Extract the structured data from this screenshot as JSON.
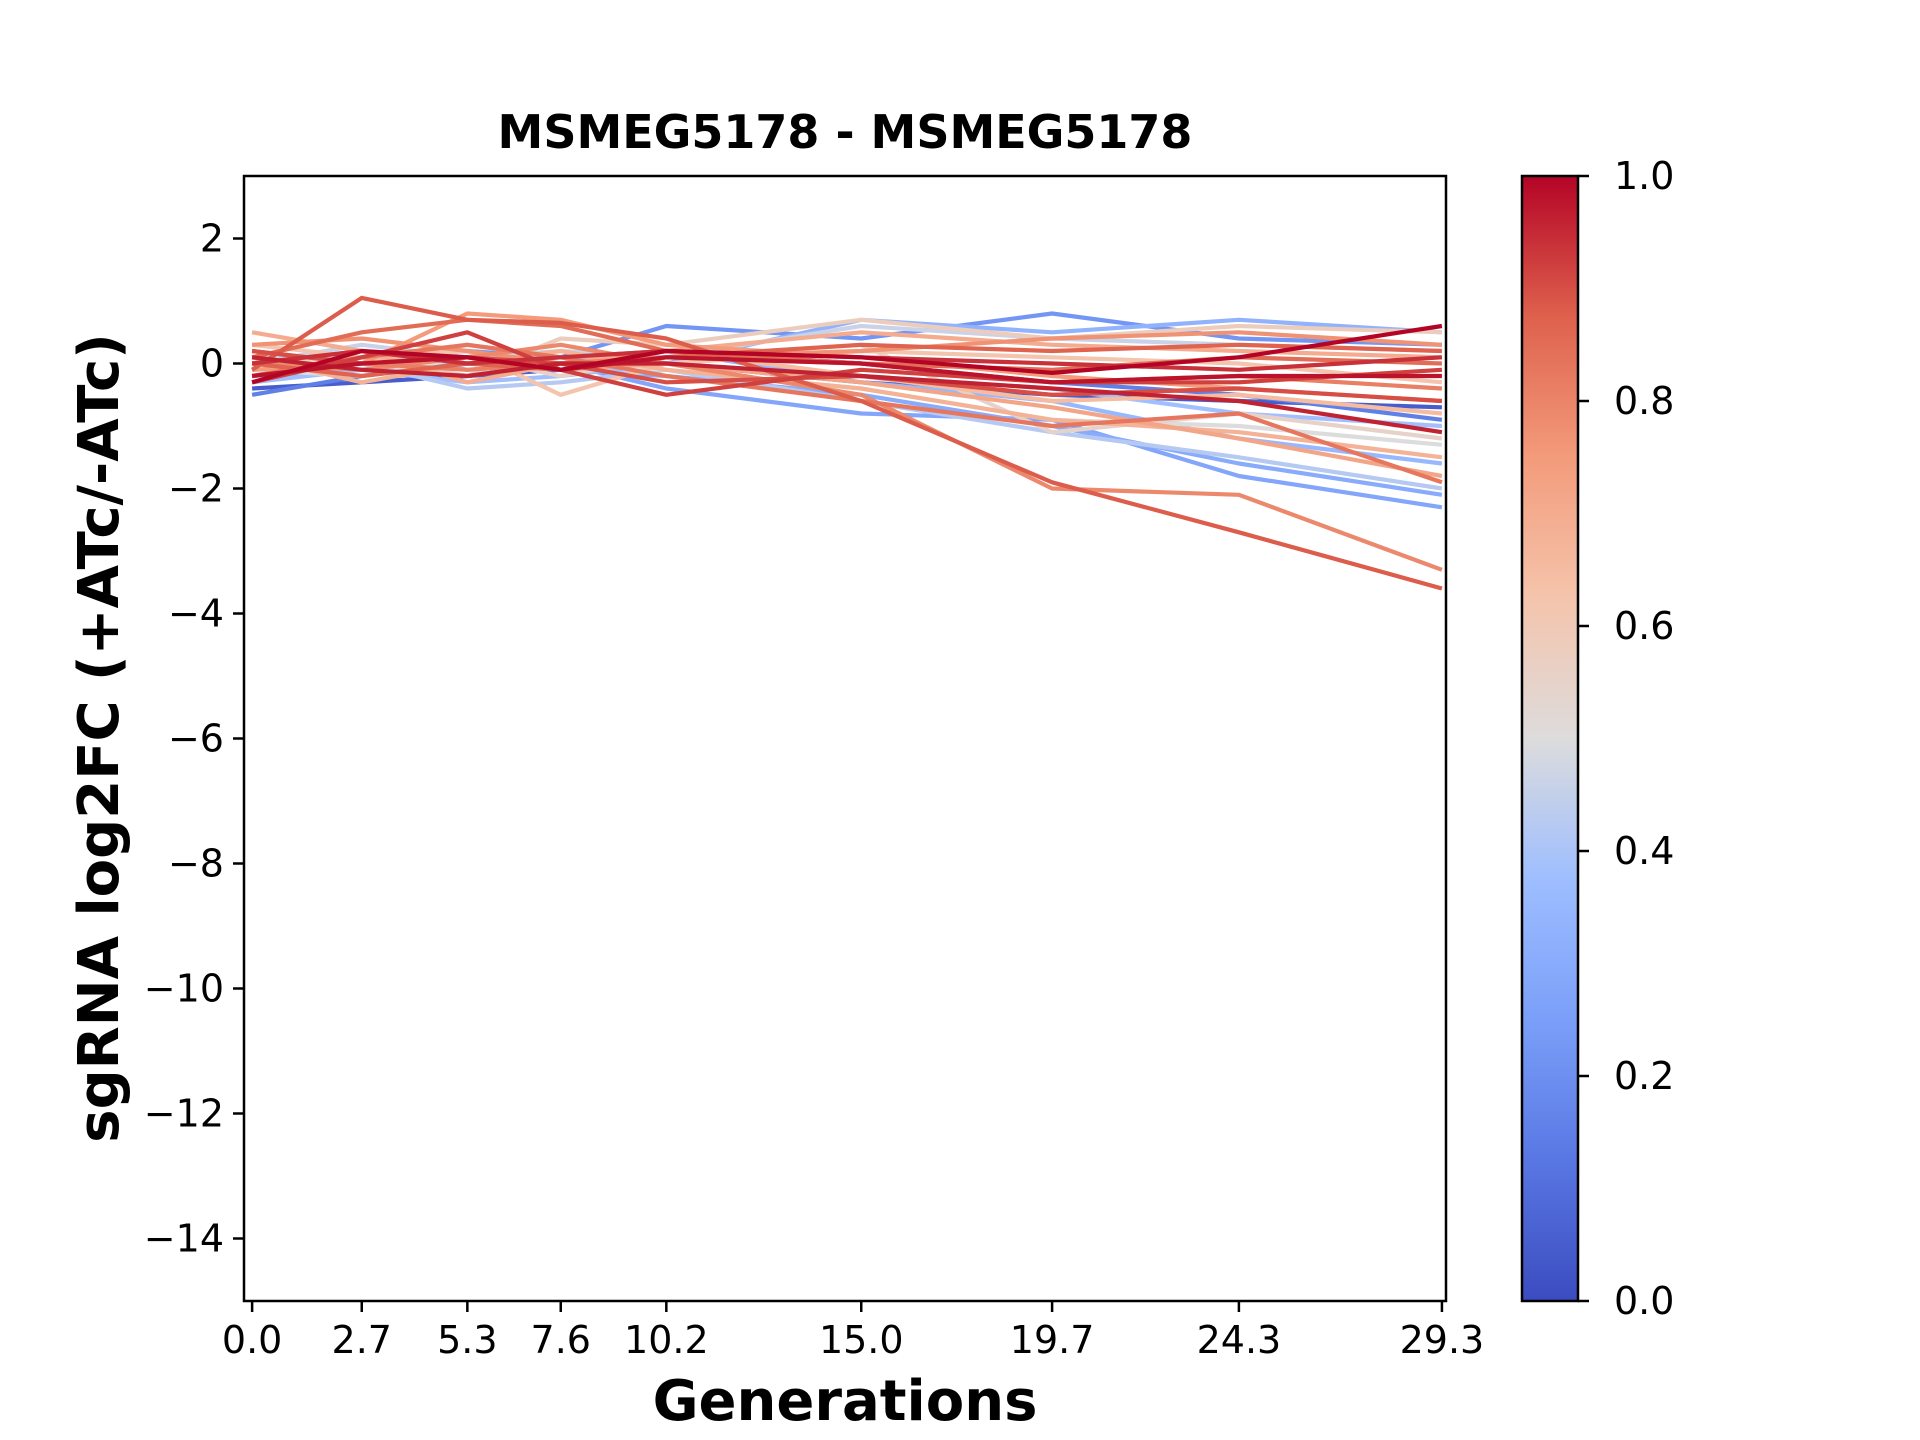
{
  "chart_data": {
    "type": "line",
    "title": "MSMEG5178 - MSMEG5178",
    "xlabel": "Generations",
    "ylabel": "sgRNA log2FC (+ATc/-ATc)",
    "x": [
      0.0,
      2.7,
      5.3,
      7.6,
      10.2,
      15.0,
      19.7,
      24.3,
      29.3
    ],
    "x_tick_labels": [
      "0.0",
      "2.7",
      "5.3",
      "7.6",
      "10.2",
      "15.0",
      "19.7",
      "24.3",
      "29.3"
    ],
    "xlim": [
      -0.2,
      29.4
    ],
    "ylim": [
      -15,
      3
    ],
    "y_ticks": [
      2,
      0,
      -2,
      -4,
      -6,
      -8,
      -10,
      -12,
      -14
    ],
    "y_tick_labels": [
      "2",
      "0",
      "−2",
      "−4",
      "−6",
      "−8",
      "−10",
      "−12",
      "−14"
    ],
    "grid": false,
    "colorbar": {
      "colormap": "coolwarm",
      "range": [
        0.0,
        1.0
      ],
      "tick_labels": [
        "0.0",
        "0.2",
        "0.4",
        "0.6",
        "0.8",
        "1.0"
      ],
      "tick_values": [
        0.0,
        0.2,
        0.4,
        0.6,
        0.8,
        1.0
      ]
    },
    "series": [
      {
        "c": 0.05,
        "values": [
          -0.4,
          -0.3,
          -0.2,
          -0.1,
          0.0,
          -0.3,
          -0.5,
          -0.6,
          -0.7
        ]
      },
      {
        "c": 0.15,
        "values": [
          -0.5,
          -0.2,
          0.0,
          0.1,
          0.2,
          0.0,
          -0.3,
          -0.5,
          -0.9
        ]
      },
      {
        "c": 0.22,
        "values": [
          0.0,
          0.1,
          0.2,
          0.1,
          0.6,
          0.4,
          0.8,
          0.4,
          0.3
        ]
      },
      {
        "c": 0.28,
        "values": [
          0.1,
          -0.1,
          -0.2,
          0.0,
          -0.4,
          -0.8,
          -0.9,
          -1.8,
          -2.3
        ]
      },
      {
        "c": 0.3,
        "values": [
          -0.2,
          -0.1,
          0.0,
          -0.1,
          -0.2,
          -0.5,
          -1.0,
          -1.6,
          -2.1
        ]
      },
      {
        "c": 0.33,
        "values": [
          0.2,
          0.0,
          0.3,
          0.1,
          0.0,
          0.7,
          0.5,
          0.7,
          0.5
        ]
      },
      {
        "c": 0.35,
        "values": [
          0.0,
          0.2,
          -0.1,
          0.0,
          0.2,
          -0.3,
          -0.6,
          -1.2,
          -1.6
        ]
      },
      {
        "c": 0.38,
        "values": [
          -0.3,
          -0.1,
          -0.3,
          -0.2,
          0.0,
          -0.2,
          -0.4,
          -0.8,
          -1.0
        ]
      },
      {
        "c": 0.42,
        "values": [
          0.1,
          0.0,
          -0.4,
          -0.3,
          -0.1,
          -0.6,
          -1.1,
          -1.5,
          -2.0
        ]
      },
      {
        "c": 0.46,
        "values": [
          0.0,
          0.3,
          0.1,
          0.2,
          0.1,
          0.6,
          0.4,
          0.3,
          0.2
        ]
      },
      {
        "c": 0.5,
        "values": [
          -0.1,
          -0.2,
          0.1,
          0.0,
          -0.1,
          -0.4,
          -0.9,
          -1.0,
          -1.3
        ]
      },
      {
        "c": 0.55,
        "values": [
          0.2,
          0.0,
          0.1,
          -0.2,
          0.1,
          0.3,
          -1.1,
          -0.8,
          -1.2
        ]
      },
      {
        "c": 0.58,
        "values": [
          0.0,
          0.1,
          -0.2,
          0.4,
          0.3,
          0.7,
          0.4,
          0.6,
          0.5
        ]
      },
      {
        "c": 0.62,
        "values": [
          0.3,
          0.1,
          0.2,
          -0.5,
          0.0,
          0.2,
          0.1,
          0.0,
          -0.3
        ]
      },
      {
        "c": 0.65,
        "values": [
          -0.2,
          0.0,
          0.3,
          0.1,
          0.2,
          -0.2,
          -0.6,
          -0.5,
          -0.8
        ]
      },
      {
        "c": 0.68,
        "values": [
          0.1,
          -0.3,
          0.0,
          0.2,
          -0.1,
          -0.4,
          -0.9,
          -1.1,
          -1.5
        ]
      },
      {
        "c": 0.7,
        "values": [
          0.5,
          0.2,
          -0.3,
          0.0,
          0.2,
          0.5,
          0.3,
          0.2,
          0.1
        ]
      },
      {
        "c": 0.72,
        "values": [
          0.0,
          0.2,
          0.0,
          -0.1,
          0.0,
          -0.3,
          -0.7,
          -1.2,
          -1.8
        ]
      },
      {
        "c": 0.75,
        "values": [
          -0.1,
          0.0,
          0.8,
          0.7,
          0.3,
          0.1,
          -0.2,
          -0.4,
          -0.6
        ]
      },
      {
        "c": 0.77,
        "values": [
          0.3,
          0.4,
          0.2,
          0.0,
          0.1,
          0.2,
          0.4,
          0.5,
          0.3
        ]
      },
      {
        "c": 0.79,
        "values": [
          0.0,
          -0.1,
          0.1,
          0.3,
          0.0,
          -0.5,
          -2.0,
          -2.1,
          -3.3
        ]
      },
      {
        "c": 0.81,
        "values": [
          0.2,
          0.0,
          -0.1,
          0.0,
          0.1,
          0.0,
          -0.3,
          -0.2,
          -0.4
        ]
      },
      {
        "c": 0.83,
        "values": [
          -0.2,
          0.1,
          0.3,
          0.1,
          -0.2,
          -0.6,
          -1.0,
          -0.8,
          -1.9
        ]
      },
      {
        "c": 0.85,
        "values": [
          0.1,
          0.5,
          0.7,
          0.6,
          0.2,
          0.0,
          -0.1,
          0.1,
          0.0
        ]
      },
      {
        "c": 0.87,
        "values": [
          0.0,
          -0.2,
          0.0,
          -0.1,
          0.1,
          0.3,
          0.2,
          0.3,
          0.2
        ]
      },
      {
        "c": 0.88,
        "values": [
          -0.1,
          1.05,
          0.7,
          0.65,
          0.4,
          -0.6,
          -1.9,
          -2.7,
          -3.6
        ]
      },
      {
        "c": 0.9,
        "values": [
          0.2,
          0.0,
          0.1,
          0.0,
          -0.3,
          -0.2,
          -0.5,
          -0.4,
          -0.6
        ]
      },
      {
        "c": 0.92,
        "values": [
          -0.3,
          0.1,
          0.5,
          -0.1,
          -0.5,
          -0.1,
          -0.3,
          -0.3,
          -0.1
        ]
      },
      {
        "c": 0.94,
        "values": [
          0.0,
          0.2,
          0.0,
          0.1,
          0.2,
          0.1,
          0.0,
          -0.1,
          0.1
        ]
      },
      {
        "c": 0.96,
        "values": [
          0.1,
          -0.1,
          -0.2,
          0.0,
          0.0,
          -0.2,
          -0.4,
          -0.6,
          -1.1
        ]
      },
      {
        "c": 0.98,
        "values": [
          -0.2,
          0.0,
          0.1,
          -0.1,
          0.1,
          0.0,
          -0.3,
          -0.2,
          -0.2
        ]
      },
      {
        "c": 1.0,
        "values": [
          -0.3,
          0.2,
          0.1,
          -0.1,
          0.2,
          0.1,
          -0.15,
          0.1,
          0.6
        ]
      }
    ]
  }
}
